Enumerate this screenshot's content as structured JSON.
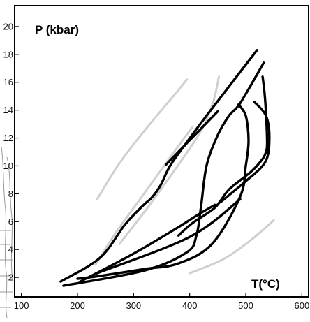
{
  "chart_data": {
    "type": "line",
    "title": "",
    "xlabel": "T(°C)",
    "ylabel": "P (kbar)",
    "xlim": [
      88,
      612
    ],
    "ylim": [
      0.6,
      21.5
    ],
    "xticks": [
      100,
      200,
      300,
      400,
      500,
      600
    ],
    "yticks": [
      2,
      4,
      6,
      8,
      10,
      12,
      14,
      16,
      18,
      20
    ],
    "grid": false,
    "legend": "none",
    "colors": {
      "primary": "#000000",
      "secondary": "#cfcfcf"
    },
    "series": [
      {
        "group": "gray",
        "x": [
          235,
          275,
          325,
          375,
          395
        ],
        "y": [
          7.6,
          10.2,
          12.8,
          15.2,
          16.2
        ]
      },
      {
        "group": "gray",
        "x": [
          275,
          325,
          375,
          420,
          442,
          452
        ],
        "y": [
          4.4,
          7.0,
          9.8,
          12.5,
          14.6,
          16.4
        ]
      },
      {
        "group": "gray",
        "x": [
          232,
          270,
          315,
          365,
          405
        ],
        "y": [
          2.9,
          5.3,
          7.8,
          10.6,
          12.8
        ]
      },
      {
        "group": "gray",
        "x": [
          400,
          460,
          510,
          550
        ],
        "y": [
          2.3,
          3.3,
          4.7,
          6.1
        ]
      },
      {
        "group": "black",
        "x": [
          170,
          240,
          285,
          318,
          332,
          348,
          365,
          395,
          430,
          520
        ],
        "y": [
          1.7,
          3.4,
          5.8,
          7.2,
          7.7,
          8.6,
          10.0,
          11.7,
          13.6,
          18.3
        ]
      },
      {
        "group": "black",
        "x": [
          175,
          320,
          395,
          412,
          420,
          430,
          450,
          470,
          490,
          532
        ],
        "y": [
          1.4,
          2.5,
          3.8,
          5.0,
          7.0,
          10.0,
          12.2,
          13.6,
          14.5,
          17.4
        ]
      },
      {
        "group": "black",
        "x": [
          358,
          450
        ],
        "y": [
          10.1,
          13.9
        ]
      },
      {
        "group": "black",
        "x": [
          205,
          300,
          380,
          415,
          445
        ],
        "y": [
          1.7,
          3.7,
          5.6,
          6.5,
          7.2
        ]
      },
      {
        "group": "black",
        "x": [
          235,
          400,
          490
        ],
        "y": [
          2.3,
          4.9,
          7.6
        ]
      },
      {
        "group": "black",
        "x": [
          530,
          534,
          537,
          538,
          536,
          530,
          510,
          470,
          445,
          405,
          380
        ],
        "y": [
          16.4,
          15.0,
          13.0,
          11.5,
          11.0,
          10.5,
          9.6,
          8.3,
          7.0,
          5.9,
          5.0
        ]
      },
      {
        "group": "black",
        "x": [
          455,
          500,
          535,
          542,
          536,
          515
        ],
        "y": [
          7.4,
          8.9,
          10.3,
          12.0,
          13.6,
          14.6
        ]
      },
      {
        "group": "black",
        "x": [
          487,
          500,
          505,
          500,
          490,
          440,
          380,
          320,
          240,
          200
        ],
        "y": [
          14.4,
          13.6,
          11.8,
          10.0,
          7.8,
          4.4,
          3.0,
          2.6,
          2.1,
          1.9
        ]
      }
    ]
  }
}
